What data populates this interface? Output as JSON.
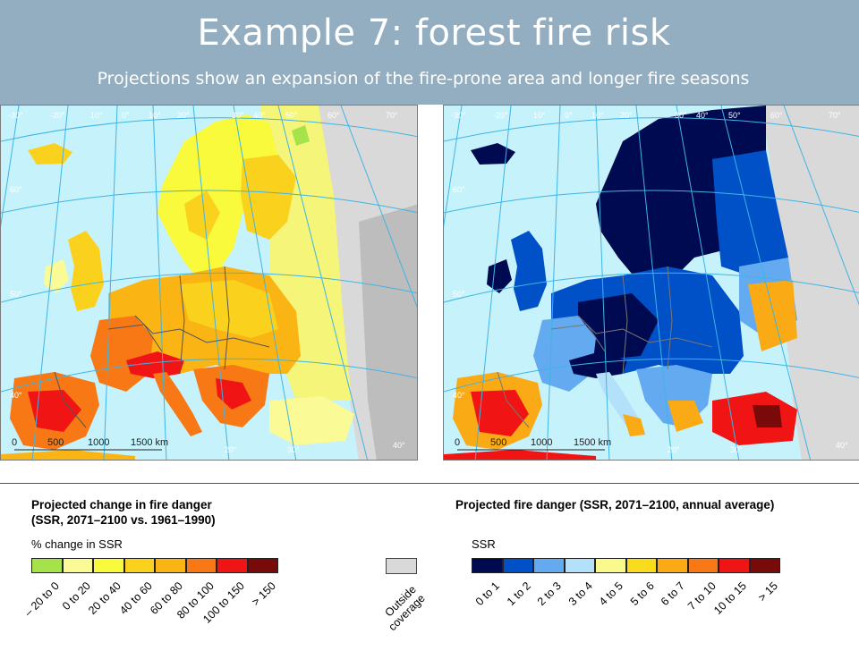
{
  "slide": {
    "title": "Example 7: forest fire risk",
    "subtitle": "Projections show an expansion of the fire-prone area and longer fire seasons"
  },
  "maps": {
    "left": {
      "grid_labels": [
        "-30°",
        "-20°",
        "10°",
        "0°",
        "10°",
        "20°",
        "30°",
        "40°",
        "50°",
        "60°",
        "70°",
        "60°",
        "50°",
        "40°",
        "20°",
        "30°",
        "40°"
      ],
      "scale": [
        "0",
        "500",
        "1000",
        "1500 km"
      ]
    },
    "right": {
      "grid_labels": [
        "-30°",
        "-20°",
        "10°",
        "0°",
        "10°",
        "20°",
        "30°",
        "40°",
        "50°",
        "60°",
        "70°",
        "60°",
        "50°",
        "40°",
        "20°",
        "30°",
        "40°"
      ],
      "scale": [
        "0",
        "500",
        "1000",
        "1500 km"
      ]
    }
  },
  "legend_left": {
    "title_line1": "Projected change in fire danger",
    "title_line2": "(SSR, 2071–2100 vs. 1961–1990)",
    "subtitle": "% change in SSR",
    "classes": [
      {
        "label": "– 20 to 0",
        "color": "#a6e34a"
      },
      {
        "label": "0 to 20",
        "color": "#fafa96"
      },
      {
        "label": "20 to 40",
        "color": "#fafa3c"
      },
      {
        "label": "40 to 60",
        "color": "#fad21e"
      },
      {
        "label": "60 to 80",
        "color": "#fab414"
      },
      {
        "label": "80 to 100",
        "color": "#f77814"
      },
      {
        "label": "100 to 150",
        "color": "#f01414"
      },
      {
        "label": "> 150",
        "color": "#780a0a"
      }
    ]
  },
  "legend_outside": {
    "label_line1": "Outside",
    "label_line2": "coverage",
    "color": "#d9d9d9"
  },
  "legend_right": {
    "title": "Projected fire danger (SSR, 2071–2100, annual average)",
    "subtitle": "SSR",
    "classes": [
      {
        "label": "0 to 1",
        "color": "#000a50"
      },
      {
        "label": "1 to 2",
        "color": "#0050c8"
      },
      {
        "label": "2 to 3",
        "color": "#64aaf0"
      },
      {
        "label": "3 to 4",
        "color": "#b4e1fa"
      },
      {
        "label": "4 to 5",
        "color": "#fafa8c"
      },
      {
        "label": "5 to 6",
        "color": "#fadc1e"
      },
      {
        "label": "6 to 7",
        "color": "#faaa14"
      },
      {
        "label": "7 to 10",
        "color": "#f77814"
      },
      {
        "label": "10 to 15",
        "color": "#f01414"
      },
      {
        "label": "> 15",
        "color": "#780a0a"
      }
    ]
  }
}
